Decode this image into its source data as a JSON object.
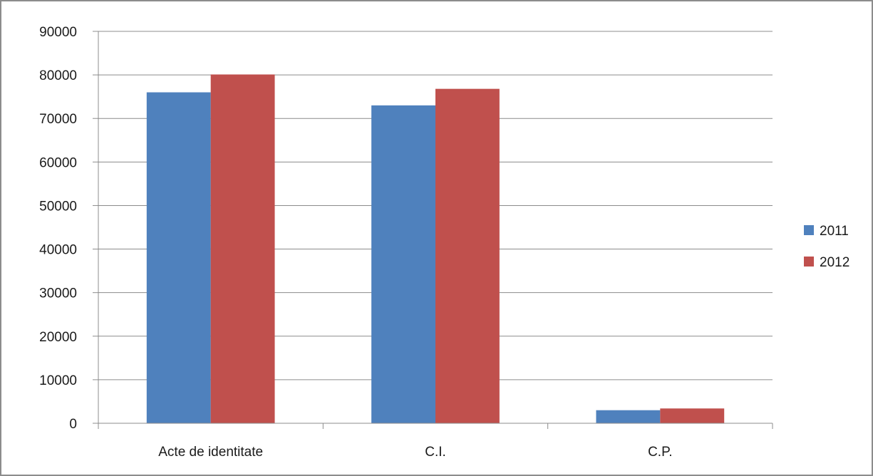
{
  "chart_data": {
    "type": "bar",
    "categories": [
      "Acte de identitate",
      "C.I.",
      "C.P."
    ],
    "series": [
      {
        "name": "2011",
        "values": [
          76000,
          73000,
          3000
        ],
        "color": "#4f81bd"
      },
      {
        "name": "2012",
        "values": [
          80100,
          76800,
          3400
        ],
        "color": "#c0504d"
      }
    ],
    "ylim": [
      0,
      90000
    ],
    "yticks": [
      0,
      10000,
      20000,
      30000,
      40000,
      50000,
      60000,
      70000,
      80000,
      90000
    ],
    "grid": true,
    "legend_position": "right",
    "title": "",
    "xlabel": "",
    "ylabel": ""
  }
}
